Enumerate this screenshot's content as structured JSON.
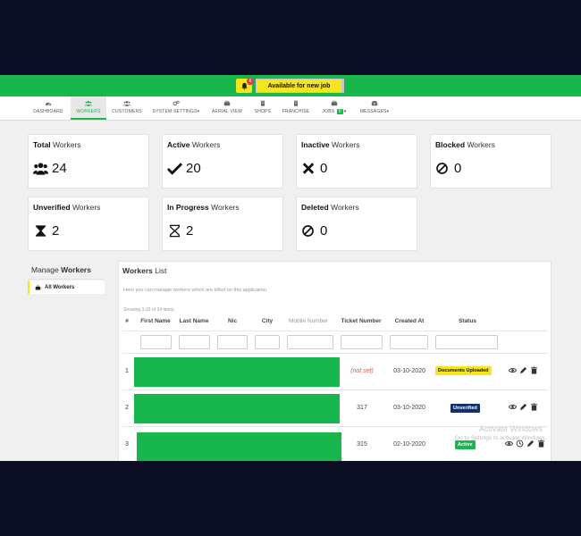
{
  "topbar": {
    "notification_count": "6",
    "available_label": "Available for new job"
  },
  "nav": {
    "items": [
      {
        "label": "DASHBOARD",
        "icon": "dashboard-icon"
      },
      {
        "label": "WORKERS",
        "icon": "users-icon"
      },
      {
        "label": "CUSTOMERS",
        "icon": "users-icon"
      },
      {
        "label": "SYSTEM SETTINGS▾",
        "icon": "gears-icon"
      },
      {
        "label": "AERIAL VIEW",
        "icon": "briefcase-icon"
      },
      {
        "label": "SHOPS",
        "icon": "building-icon"
      },
      {
        "label": "FRANCHISE",
        "icon": "building-icon"
      },
      {
        "label": "JOBS",
        "icon": "briefcase-icon",
        "badge": "0"
      },
      {
        "label": "MESSAGES▾",
        "icon": "inbox-icon"
      }
    ]
  },
  "stats": [
    {
      "bold": "Total",
      "rest": " Workers",
      "value": "24",
      "icon": "users-icon"
    },
    {
      "bold": "Active",
      "rest": " Workers",
      "value": "20",
      "icon": "check-icon"
    },
    {
      "bold": "Inactive",
      "rest": " Workers",
      "value": "0",
      "icon": "times-icon"
    },
    {
      "bold": "Blocked",
      "rest": " Workers",
      "value": "0",
      "icon": "ban-icon"
    },
    {
      "bold": "Unverified",
      "rest": " Workers",
      "value": "2",
      "icon": "hourglass-icon"
    },
    {
      "bold": "In Progress",
      "rest": " Workers",
      "value": "2",
      "icon": "hourglass-outline-icon"
    },
    {
      "bold": "Deleted",
      "rest": " Workers",
      "value": "0",
      "icon": "ban-icon"
    }
  ],
  "sidebar": {
    "title_plain": "Manage ",
    "title_bold": "Workers",
    "item_label": "All Workers"
  },
  "panel": {
    "title_bold": "Workers",
    "title_plain": " List",
    "description": "Here you can manage workers which are billed on this application.",
    "summary": "Showing 1-15 of 24 items."
  },
  "table": {
    "headers": [
      "#",
      "First Name",
      "Last Name",
      "Nic",
      "City",
      "Mobile Number",
      "Ticket Number",
      "Created At",
      "Status"
    ],
    "rows": [
      {
        "num": "1",
        "ticket": "(not set)",
        "created": "03-10-2020",
        "status": "Documents Uploaded"
      },
      {
        "num": "2",
        "ticket": "317",
        "created": "03-10-2020",
        "status": "Unverified"
      },
      {
        "num": "3",
        "ticket": "315",
        "created": "02-10-2020",
        "status": "Active"
      }
    ]
  },
  "watermark": {
    "line1": "Activate Windows",
    "line2": "Go to Settings to activate Windows."
  },
  "colors": {
    "brand_green": "#18b74e",
    "accent_yellow": "#f4e51c",
    "navy": "#12306a",
    "danger": "#d9534f"
  }
}
